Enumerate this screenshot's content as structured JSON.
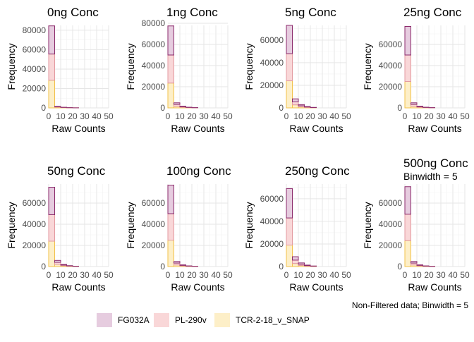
{
  "chart_data": {
    "type": "bar",
    "variant": "stacked-histogram",
    "facets": [
      {
        "title": "0ng Conc",
        "subtitle": "",
        "ylim": [
          0,
          85000
        ],
        "yticks": [
          0,
          20000,
          40000,
          60000,
          80000
        ],
        "FG032A": [
          29000,
          400,
          150,
          60,
          20
        ],
        "PL-290v": [
          27000,
          500,
          200,
          80,
          30
        ],
        "TCR-2-18_v_SNAP": [
          28500,
          700,
          300,
          120,
          40
        ]
      },
      {
        "title": "1ng Conc",
        "subtitle": "",
        "ylim": [
          0,
          78000
        ],
        "yticks": [
          0,
          20000,
          40000,
          60000,
          80000
        ],
        "FG032A": [
          27500,
          1500,
          500,
          200,
          80
        ],
        "PL-290v": [
          26500,
          1800,
          600,
          250,
          100
        ],
        "TCR-2-18_v_SNAP": [
          23500,
          1500,
          500,
          200,
          80
        ]
      },
      {
        "title": "5ng Conc",
        "subtitle": "",
        "ylim": [
          0,
          73000
        ],
        "yticks": [
          0,
          20000,
          40000,
          60000
        ],
        "FG032A": [
          25000,
          2700,
          1000,
          400,
          150
        ],
        "PL-290v": [
          24000,
          2600,
          1000,
          400,
          150
        ],
        "TCR-2-18_v_SNAP": [
          24000,
          2700,
          900,
          400,
          150
        ]
      },
      {
        "title": "25ng Conc",
        "subtitle": "",
        "ylim": [
          0,
          78000
        ],
        "yticks": [
          0,
          20000,
          40000,
          60000
        ],
        "FG032A": [
          27000,
          1500,
          500,
          200,
          80
        ],
        "PL-290v": [
          25000,
          1800,
          600,
          250,
          100
        ],
        "TCR-2-18_v_SNAP": [
          25000,
          1500,
          500,
          200,
          80
        ]
      },
      {
        "title": "50ng Conc",
        "subtitle": "",
        "ylim": [
          0,
          78000
        ],
        "yticks": [
          0,
          20000,
          40000,
          60000
        ],
        "FG032A": [
          26000,
          1800,
          600,
          250,
          100
        ],
        "PL-290v": [
          25000,
          2000,
          700,
          300,
          120
        ],
        "TCR-2-18_v_SNAP": [
          24000,
          2000,
          700,
          300,
          120
        ]
      },
      {
        "title": "100ng Conc",
        "subtitle": "",
        "ylim": [
          0,
          78000
        ],
        "yticks": [
          0,
          20000,
          40000,
          60000
        ],
        "FG032A": [
          27000,
          1500,
          500,
          200,
          80
        ],
        "PL-290v": [
          25000,
          1800,
          600,
          250,
          100
        ],
        "TCR-2-18_v_SNAP": [
          25000,
          1500,
          500,
          200,
          80
        ]
      },
      {
        "title": "250ng Conc",
        "subtitle": "",
        "ylim": [
          0,
          73000
        ],
        "yticks": [
          0,
          20000,
          40000,
          60000
        ],
        "FG032A": [
          26000,
          3000,
          1100,
          450,
          180
        ],
        "PL-290v": [
          24000,
          3000,
          1100,
          450,
          180
        ],
        "TCR-2-18_v_SNAP": [
          19000,
          2700,
          1000,
          400,
          150
        ]
      },
      {
        "title": "500ng Conc",
        "subtitle": "Binwidth = 5",
        "ylim": [
          0,
          78000
        ],
        "yticks": [
          0,
          20000,
          40000,
          60000
        ],
        "FG032A": [
          26000,
          1500,
          500,
          200,
          80
        ],
        "PL-290v": [
          25000,
          1800,
          600,
          250,
          100
        ],
        "TCR-2-18_v_SNAP": [
          24500,
          1500,
          500,
          200,
          80
        ]
      }
    ],
    "bins_start": [
      0,
      5,
      10,
      15,
      20
    ],
    "binwidth": 5,
    "xlim": [
      0,
      50
    ],
    "xticks": [
      0,
      10,
      20,
      30,
      40,
      50
    ],
    "xlabel": "Raw Counts",
    "ylabel": "Frequency",
    "caption": "Non-Filtered data; Binwidth = 5",
    "series": [
      {
        "name": "FG032A",
        "fill": "#e6ccdf",
        "stroke": "#8b2a6b"
      },
      {
        "name": "PL-290v",
        "fill": "#f9d7d8",
        "stroke": "#e39aa0"
      },
      {
        "name": "TCR-2-18_v_SNAP",
        "fill": "#fdefc8",
        "stroke": "#f2c14a"
      }
    ],
    "stack_order": [
      "TCR-2-18_v_SNAP",
      "PL-290v",
      "FG032A"
    ],
    "legend": "bottom",
    "grid": true
  }
}
